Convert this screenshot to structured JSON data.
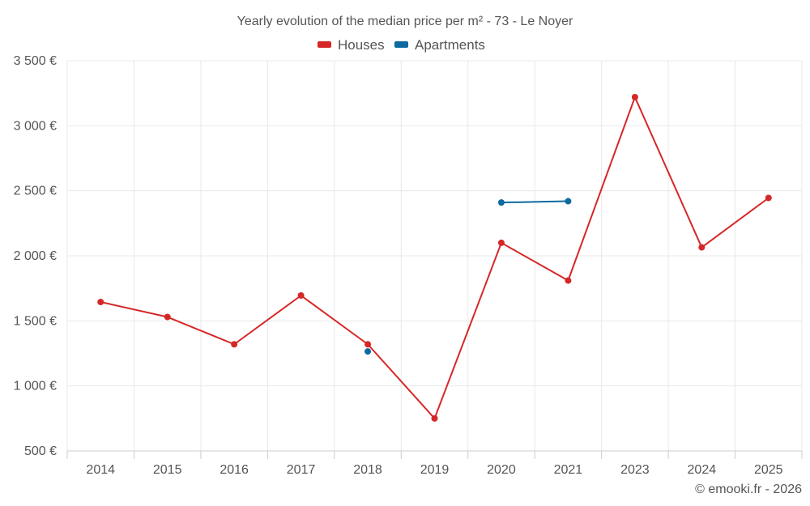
{
  "chart_data": {
    "type": "line",
    "title": "Yearly evolution of the median price per m² - 73 - Le Noyer",
    "categories": [
      "2014",
      "2015",
      "2016",
      "2017",
      "2018",
      "2019",
      "2020",
      "2021",
      "2023",
      "2024",
      "2025"
    ],
    "ylim": [
      500,
      3500
    ],
    "yticks": [
      500,
      1000,
      1500,
      2000,
      2500,
      3000,
      3500
    ],
    "ytick_labels": [
      "500 €",
      "1 000 €",
      "1 500 €",
      "2 000 €",
      "2 500 €",
      "3 000 €",
      "3 500 €"
    ],
    "grid": true,
    "legend_position": "top-center",
    "series": [
      {
        "name": "Houses",
        "color": "#d62728",
        "values": [
          1645,
          1530,
          1320,
          1695,
          1320,
          750,
          2100,
          1810,
          3220,
          2065,
          2445
        ]
      },
      {
        "name": "Apartments",
        "color": "#0d6aa0",
        "values": [
          null,
          null,
          null,
          null,
          1265,
          null,
          2410,
          2420,
          null,
          null,
          null
        ]
      }
    ],
    "credit": "© emooki.fr - 2026"
  }
}
